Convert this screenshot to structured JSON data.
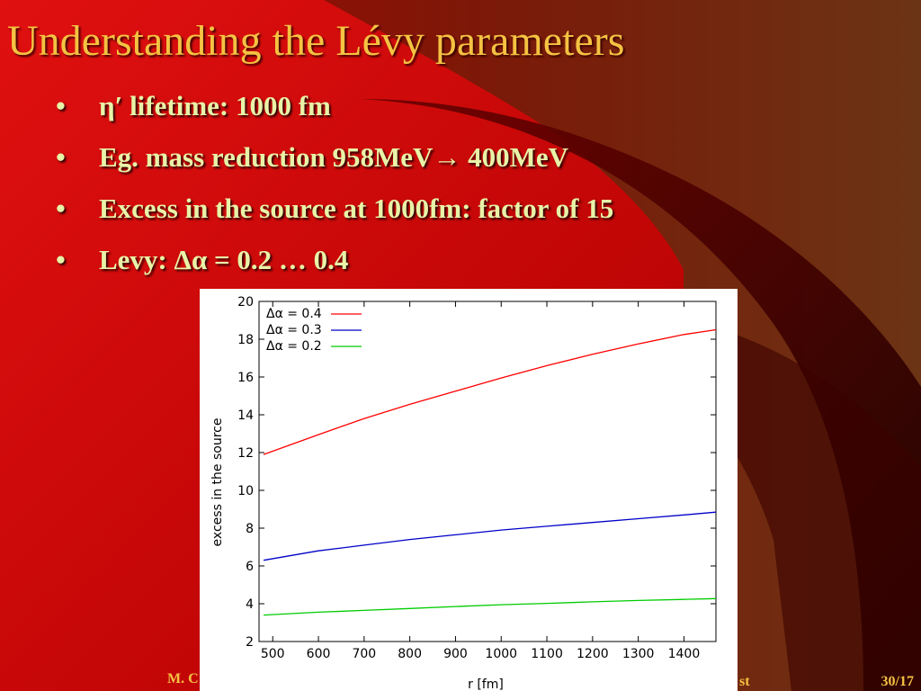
{
  "slide": {
    "title": "Understanding the Lévy parameters",
    "bullets": [
      "η′ lifetime: 1000 fm",
      "Eg. mass reduction 958MeV→ 400MeV",
      "Excess in the source at 1000fm: factor of 15",
      "Levy: Δα = 0.2 … 0.4"
    ],
    "bullet_symbol": "•",
    "footer_left": "M. C",
    "footer_mid": "st",
    "page_number": "30/17"
  },
  "colors": {
    "title": "#f5c242",
    "bullet_text": "#e8f3a8",
    "background_red": "#c00000",
    "series_red": "#ff0000",
    "series_blue": "#0000c8",
    "series_green": "#00cc00"
  },
  "chart_data": {
    "type": "line",
    "xlabel": "r [fm]",
    "ylabel": "excess in the source",
    "xlim": [
      470,
      1470
    ],
    "ylim": [
      2,
      20
    ],
    "xticks": [
      500,
      600,
      700,
      800,
      900,
      1000,
      1100,
      1200,
      1300,
      1400
    ],
    "yticks": [
      2,
      4,
      6,
      8,
      10,
      12,
      14,
      16,
      18,
      20
    ],
    "legend_position": "top-left",
    "grid": false,
    "series": [
      {
        "name": "Δα = 0.4",
        "color": "#ff0000",
        "x": [
          480,
          600,
          700,
          800,
          900,
          1000,
          1100,
          1200,
          1300,
          1400,
          1470
        ],
        "y": [
          11.9,
          12.95,
          13.8,
          14.55,
          15.25,
          15.95,
          16.6,
          17.2,
          17.75,
          18.25,
          18.5
        ]
      },
      {
        "name": "Δα = 0.3",
        "color": "#0000c8",
        "x": [
          480,
          600,
          700,
          800,
          900,
          1000,
          1100,
          1200,
          1300,
          1400,
          1470
        ],
        "y": [
          6.3,
          6.8,
          7.1,
          7.4,
          7.65,
          7.9,
          8.1,
          8.3,
          8.5,
          8.7,
          8.85
        ]
      },
      {
        "name": "Δα = 0.2",
        "color": "#00cc00",
        "x": [
          480,
          600,
          700,
          800,
          900,
          1000,
          1100,
          1200,
          1300,
          1400,
          1470
        ],
        "y": [
          3.4,
          3.55,
          3.65,
          3.75,
          3.85,
          3.95,
          4.02,
          4.1,
          4.17,
          4.23,
          4.27
        ]
      }
    ]
  }
}
